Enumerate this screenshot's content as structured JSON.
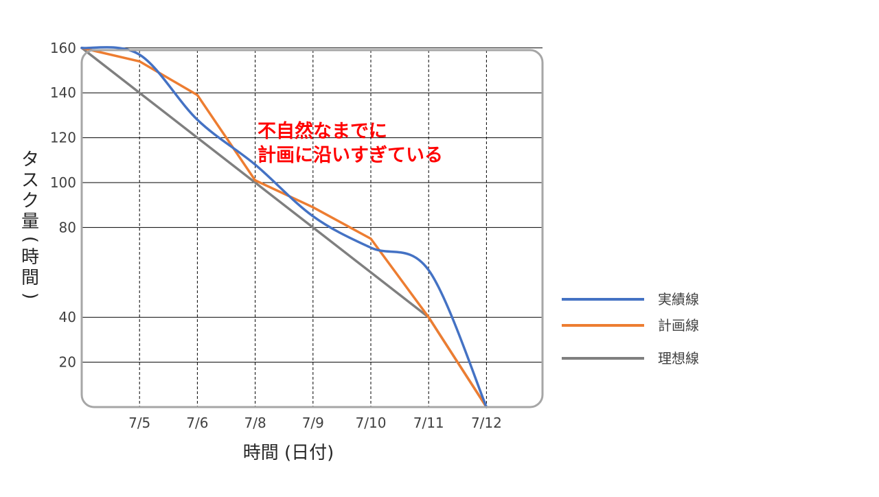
{
  "chart_data": {
    "type": "line",
    "title": "",
    "xlabel": "時間 (日付)",
    "ylabel_parts": [
      "タ",
      "ス",
      "ク",
      "量",
      "(",
      "時",
      "間",
      ")"
    ],
    "x_tick_labels": [
      "7/5",
      "7/6",
      "7/8",
      "7/9",
      "7/10",
      "7/11",
      "7/12"
    ],
    "y_tick_labels": [
      20,
      40,
      80,
      100,
      120,
      140,
      160
    ],
    "x_categories": [
      "",
      "7/5",
      "7/6",
      "7/8",
      "7/9",
      "7/10",
      "7/11",
      "7/12"
    ],
    "ylim": [
      0,
      175
    ],
    "grid": {
      "horizontal": true,
      "vertical_dashed": true
    },
    "legend_position": "right",
    "series": [
      {
        "name": "実績線",
        "color": "#4472C4",
        "smooth": true,
        "values": [
          160,
          157,
          128,
          108,
          85,
          71,
          61,
          0
        ]
      },
      {
        "name": "計画線",
        "color": "#ED7D31",
        "smooth": false,
        "values": [
          160,
          154,
          139,
          101,
          89,
          75,
          40,
          0
        ]
      },
      {
        "name": "理想線",
        "color": "#7F7F7F",
        "smooth": false,
        "values": [
          160,
          140,
          120,
          100,
          80,
          60,
          40,
          0
        ]
      }
    ],
    "annotation": {
      "lines": [
        "不自然なまでに",
        "計画に沿いすぎている"
      ],
      "color": "#FF0000"
    }
  }
}
